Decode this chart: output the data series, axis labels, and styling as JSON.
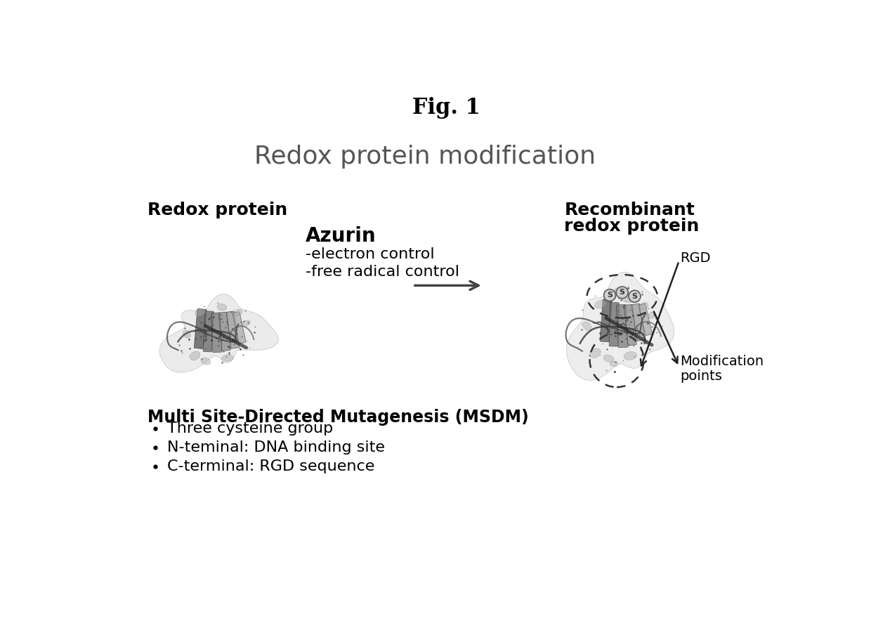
{
  "fig_title": "Fig. 1",
  "main_title": "Redox protein modification",
  "left_label": "Redox protein",
  "right_label_line1": "Recombinant",
  "right_label_line2": "redox protein",
  "center_bold": "Azurin",
  "center_line1": "-electron control",
  "center_line2": "-free radical control",
  "bottom_title": "Multi Site-Directed Mutagenesis (MSDM)",
  "bullet1": "Three cysteine group",
  "bullet2": "N-teminal: DNA binding site",
  "bullet3": "C-terminal: RGD sequence",
  "rgd_label": "RGD",
  "mod_label_line1": "Modification",
  "mod_label_line2": "points",
  "bg_color": "#ffffff",
  "text_color": "#000000",
  "title_fontsize": 22,
  "main_title_fontsize": 26,
  "label_fontsize": 18,
  "body_fontsize": 15,
  "small_fontsize": 13
}
